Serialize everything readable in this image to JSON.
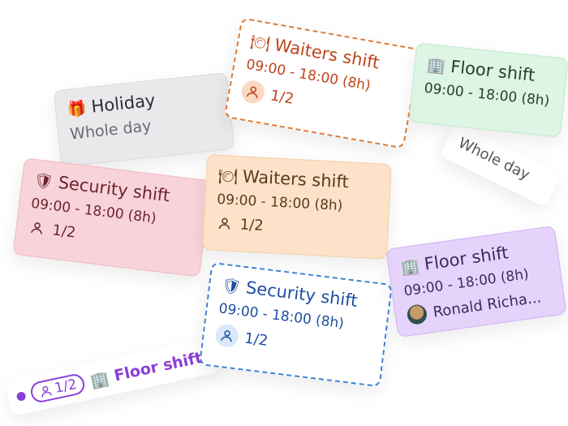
{
  "colors": {
    "holiday_bg": "#e9e9ec",
    "waiter_dashed": "#e07a30",
    "floor_green_bg": "#dcf5e4",
    "security_pink_bg": "#f8d3d9",
    "waiters_peach_bg": "#fde1c8",
    "security_blue_dashed": "#3b82d6",
    "floor_purple_bg": "#e6d3fb",
    "floor_pill_accent": "#8b3fd9"
  },
  "cards": {
    "holiday": {
      "icon": "gift-icon",
      "emoji": "🎁",
      "title": "Holiday",
      "subtitle": "Whole day"
    },
    "waiter_dashed": {
      "icon": "plate-icon",
      "emoji": "🍽",
      "title": "Waiters shift",
      "time": "09:00 - 18:00 (8h)",
      "count": "1/2"
    },
    "whole_day_pill": {
      "text": "Whole day"
    },
    "floor_green": {
      "icon": "building-icon",
      "emoji": "🏢",
      "title": "Floor shift",
      "time": "09:00 - 18:00 (8h)"
    },
    "security_pink": {
      "icon": "shield-icon",
      "emoji": "🛡",
      "title": "Security shift",
      "time": "09:00 - 18:00 (8h)",
      "count": "1/2"
    },
    "waiters_peach": {
      "icon": "plate-icon",
      "emoji": "🍽",
      "title": "Waiters shift",
      "time": "09:00 - 18:00 (8h)",
      "count": "1/2"
    },
    "floor_pill": {
      "count": "1/2",
      "icon": "building-icon",
      "emoji": "🏢",
      "title": "Floor shift"
    },
    "security_blue": {
      "icon": "shield-icon",
      "emoji": "🛡",
      "title": "Security shift",
      "time": "09:00 - 18:00 (8h)",
      "count": "1/2"
    },
    "floor_purple": {
      "icon": "building-icon",
      "emoji": "🏢",
      "title": "Floor shift",
      "time": "09:00 - 18:00 (8h)",
      "assignee": "Ronald Richa..."
    }
  }
}
